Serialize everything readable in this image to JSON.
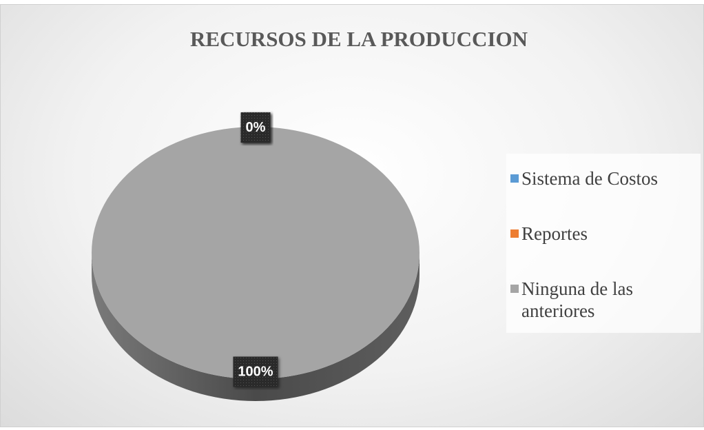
{
  "chart_data": {
    "type": "pie",
    "title": "RECURSOS DE LA PRODUCCION",
    "categories": [
      "Sistema de Costos",
      "Reportes",
      "Ninguna de las anteriores"
    ],
    "values": [
      0,
      0,
      100
    ],
    "value_labels": [
      "0%",
      "0%",
      "100%"
    ],
    "colors": [
      "#5b9bd5",
      "#ed7d31",
      "#a5a5a5"
    ],
    "legend": "right"
  }
}
